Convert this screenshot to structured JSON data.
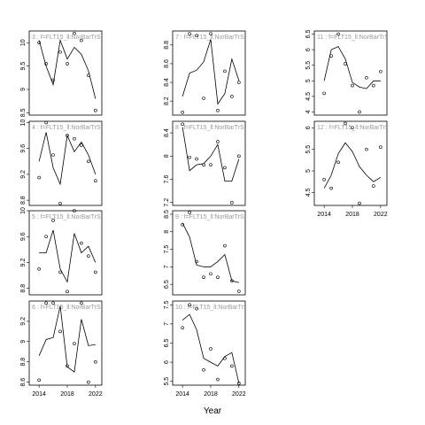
{
  "xlabel": "Year",
  "chart_data": [
    {
      "type": "line",
      "title": "3 : f=FLT15_ll:NorBarTrS",
      "x": [
        2014,
        2015,
        2016,
        2017,
        2018,
        2019,
        2020,
        2021,
        2022
      ],
      "xlim": [
        2012.6,
        2022.9
      ],
      "ylim": [
        8.45,
        10.25
      ],
      "yticks": [
        8.5,
        9.0,
        9.5,
        10.0
      ],
      "series": [
        {
          "style": "points",
          "color": "#000000",
          "values": [
            10.0,
            9.55,
            9.2,
            9.8,
            9.55,
            10.2,
            10.05,
            9.3,
            8.55
          ]
        },
        {
          "style": "line",
          "color": "#000000",
          "values": [
            10.05,
            9.5,
            9.1,
            10.05,
            9.65,
            9.9,
            9.75,
            9.4,
            8.8
          ]
        }
      ]
    },
    {
      "type": "line",
      "title": "4 : f=FLT15_ll:NorBarTrS",
      "x": [
        2014,
        2015,
        2016,
        2017,
        2018,
        2019,
        2020,
        2021,
        2022
      ],
      "xlim": [
        2012.6,
        2022.9
      ],
      "ylim": [
        8.72,
        10.02
      ],
      "yticks": [
        8.8,
        9.2,
        9.6,
        10.0
      ],
      "series": [
        {
          "style": "points",
          "color": "#000000",
          "values": [
            9.15,
            10.0,
            9.5,
            8.75,
            9.8,
            9.75,
            9.65,
            9.4,
            9.1
          ]
        },
        {
          "style": "line",
          "color": "#000000",
          "values": [
            9.4,
            9.85,
            9.3,
            9.05,
            9.8,
            9.55,
            9.7,
            9.5,
            9.2
          ]
        }
      ]
    },
    {
      "type": "line",
      "title": "5 : f=FLT15_ll:NorBarTrS",
      "x": [
        2014,
        2015,
        2016,
        2017,
        2018,
        2019,
        2020,
        2021,
        2022
      ],
      "xlim": [
        2012.6,
        2022.9
      ],
      "ylim": [
        8.7,
        10.0
      ],
      "yticks": [
        8.8,
        9.2,
        9.6,
        10.0
      ],
      "series": [
        {
          "style": "points",
          "color": "#000000",
          "values": [
            9.1,
            9.6,
            9.85,
            9.05,
            8.75,
            10.0,
            9.5,
            9.3,
            9.05
          ]
        },
        {
          "style": "line",
          "color": "#000000",
          "values": [
            9.35,
            9.35,
            9.7,
            9.1,
            8.9,
            9.65,
            9.35,
            9.45,
            9.2
          ]
        }
      ]
    },
    {
      "type": "line",
      "title": "6 : f=FLT15_ll:NorBarTrS",
      "x": [
        2014,
        2015,
        2016,
        2017,
        2018,
        2019,
        2020,
        2021,
        2022
      ],
      "xlim": [
        2012.6,
        2022.9
      ],
      "ylim": [
        8.57,
        9.4
      ],
      "yticks": [
        8.6,
        8.8,
        9.0,
        9.2
      ],
      "xticks": [
        2014,
        2018,
        2022
      ],
      "series": [
        {
          "style": "points",
          "color": "#000000",
          "values": [
            8.62,
            9.38,
            9.38,
            9.1,
            8.76,
            8.98,
            9.38,
            8.6,
            8.8
          ]
        },
        {
          "style": "line",
          "color": "#000000",
          "values": [
            8.86,
            9.02,
            9.04,
            9.35,
            8.75,
            8.7,
            9.22,
            8.96,
            8.97
          ]
        }
      ]
    },
    {
      "type": "line",
      "title": "7 : f=FLT15_ll:NorBarTrS",
      "x": [
        2014,
        2015,
        2016,
        2017,
        2018,
        2019,
        2020,
        2021,
        2022
      ],
      "xlim": [
        2012.6,
        2022.9
      ],
      "ylim": [
        8.05,
        8.95
      ],
      "yticks": [
        8.2,
        8.4,
        8.6,
        8.8
      ],
      "series": [
        {
          "style": "points",
          "color": "#000000",
          "values": [
            8.08,
            8.92,
            8.9,
            8.23,
            8.92,
            8.1,
            8.52,
            8.25,
            8.4
          ]
        },
        {
          "style": "line",
          "color": "#000000",
          "values": [
            8.25,
            8.5,
            8.53,
            8.62,
            8.86,
            8.17,
            8.28,
            8.65,
            8.42
          ]
        }
      ]
    },
    {
      "type": "line",
      "title": "8 : f=FLT15_ll:NorBarTrS",
      "x": [
        2014,
        2015,
        2016,
        2017,
        2018,
        2019,
        2020,
        2021,
        2022
      ],
      "xlim": [
        2012.6,
        2022.9
      ],
      "ylim": [
        7.15,
        8.6
      ],
      "yticks": [
        7.2,
        7.6,
        8.0,
        8.4
      ],
      "series": [
        {
          "style": "points",
          "color": "#000000",
          "values": [
            8.55,
            7.98,
            7.95,
            7.85,
            7.85,
            8.25,
            7.8,
            7.2,
            8.0
          ]
        },
        {
          "style": "line",
          "color": "#000000",
          "values": [
            8.5,
            7.75,
            7.85,
            7.87,
            8.0,
            8.2,
            7.57,
            7.57,
            7.95
          ]
        }
      ]
    },
    {
      "type": "line",
      "title": "9 : f=FLT15_ll:NorBarTrS",
      "x": [
        2014,
        2015,
        2016,
        2017,
        2018,
        2019,
        2020,
        2021,
        2022
      ],
      "xlim": [
        2012.6,
        2022.9
      ],
      "ylim": [
        6.2,
        8.6
      ],
      "yticks": [
        6.5,
        7.0,
        7.5,
        8.0,
        8.5
      ],
      "series": [
        {
          "style": "points",
          "color": "#000000",
          "values": [
            8.2,
            8.55,
            7.15,
            6.7,
            6.8,
            6.7,
            7.6,
            6.6,
            6.3
          ]
        },
        {
          "style": "line",
          "color": "#000000",
          "values": [
            8.25,
            7.85,
            7.05,
            7.0,
            7.0,
            7.15,
            7.35,
            6.6,
            6.55
          ]
        }
      ]
    },
    {
      "type": "line",
      "title": "10 : f=FLT15_ll:NorBarTrS",
      "x": [
        2014,
        2015,
        2016,
        2017,
        2018,
        2019,
        2020,
        2021,
        2022
      ],
      "xlim": [
        2012.6,
        2022.9
      ],
      "ylim": [
        5.4,
        7.6
      ],
      "yticks": [
        5.5,
        6.0,
        6.5,
        7.0,
        7.5
      ],
      "xticks": [
        2014,
        2018,
        2022
      ],
      "series": [
        {
          "style": "points",
          "color": "#000000",
          "values": [
            6.9,
            7.5,
            7.4,
            5.8,
            6.35,
            5.55,
            6.1,
            5.9,
            5.45
          ]
        },
        {
          "style": "line",
          "color": "#000000",
          "values": [
            7.1,
            7.25,
            6.85,
            6.1,
            6.0,
            5.9,
            6.15,
            6.25,
            5.45
          ]
        }
      ]
    },
    {
      "type": "line",
      "title": "11 : f=FLT15_ll:NorBarTrS",
      "x": [
        2014,
        2015,
        2016,
        2017,
        2018,
        2019,
        2020,
        2021,
        2022
      ],
      "xlim": [
        2012.6,
        2022.9
      ],
      "ylim": [
        3.9,
        6.6
      ],
      "yticks": [
        4.0,
        4.5,
        5.0,
        5.5,
        6.0,
        6.5
      ],
      "series": [
        {
          "style": "points",
          "color": "#000000",
          "values": [
            4.6,
            5.8,
            6.5,
            5.55,
            4.85,
            4.0,
            5.1,
            4.85,
            5.3
          ]
        },
        {
          "style": "line",
          "color": "#000000",
          "values": [
            5.0,
            6.0,
            6.1,
            5.7,
            4.95,
            4.8,
            4.75,
            5.0,
            5.0
          ]
        }
      ]
    },
    {
      "type": "line",
      "title": "12 : f=FLT15_ll:NorBarTrS",
      "x": [
        2014,
        2015,
        2016,
        2017,
        2018,
        2019,
        2020,
        2021,
        2022
      ],
      "xlim": [
        2012.6,
        2022.9
      ],
      "ylim": [
        4.2,
        6.15
      ],
      "yticks": [
        4.5,
        5.0,
        5.5,
        6.0
      ],
      "xticks": [
        2014,
        2018,
        2022
      ],
      "series": [
        {
          "style": "points",
          "color": "#000000",
          "values": [
            4.8,
            4.6,
            5.2,
            6.1,
            6.0,
            4.25,
            5.5,
            4.65,
            5.55
          ]
        },
        {
          "style": "line",
          "color": "#000000",
          "values": [
            4.6,
            4.9,
            5.4,
            5.65,
            5.45,
            5.1,
            4.9,
            4.75,
            4.85
          ]
        }
      ]
    }
  ]
}
